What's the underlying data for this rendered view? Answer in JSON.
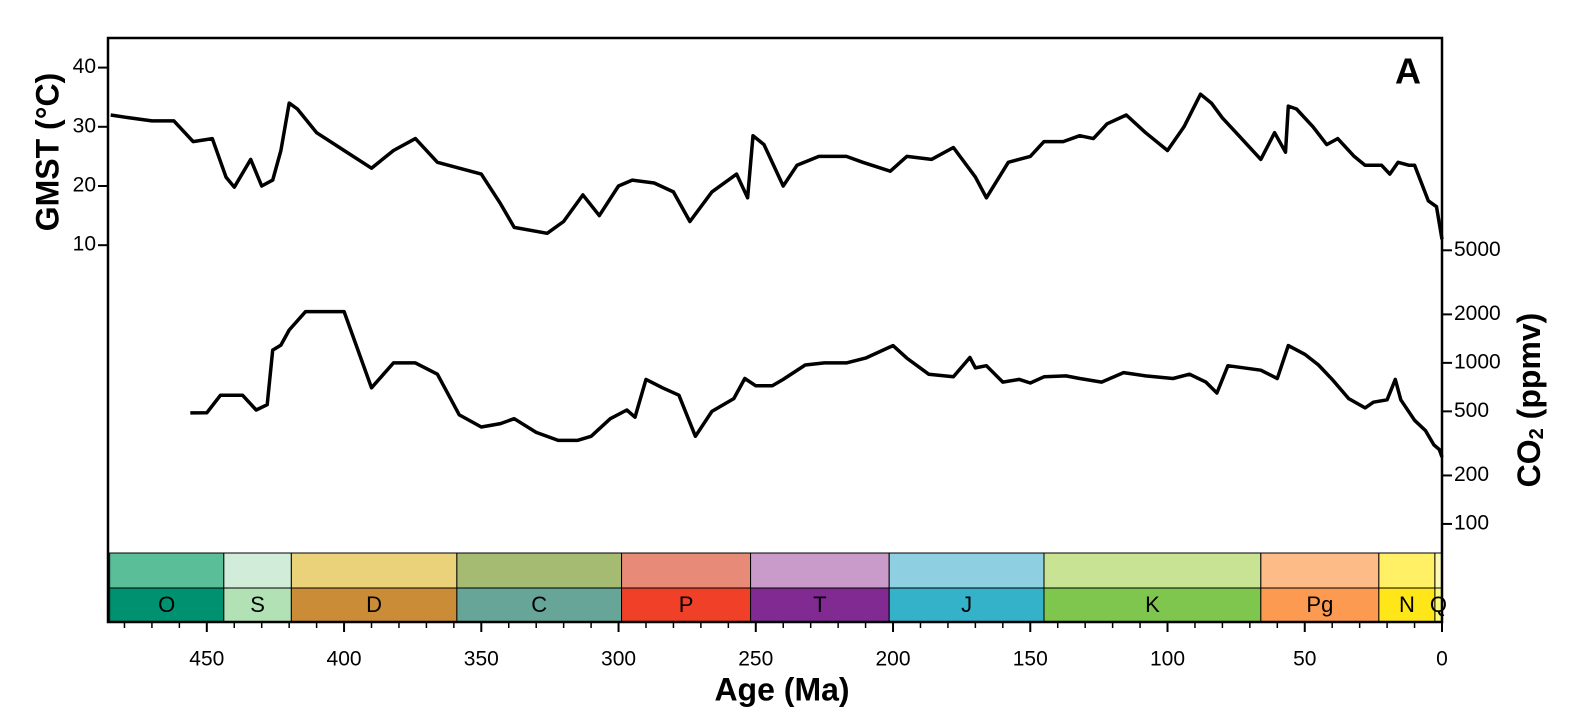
{
  "chart_data": {
    "type": "line",
    "panel_label": "A",
    "ylabel": "GMST (°C)",
    "y2label_main": "CO",
    "y2label_sub": "2",
    "y2label_unit": " (ppmv)",
    "xlabel": "Age (Ma)",
    "xlim": [
      486,
      0
    ],
    "xticks": [
      450,
      400,
      350,
      300,
      250,
      200,
      150,
      100,
      50,
      0
    ],
    "xminor": [
      480,
      470,
      460,
      440,
      430,
      420,
      410,
      390,
      380,
      370,
      360,
      340,
      330,
      320,
      310,
      290,
      280,
      270,
      260,
      240,
      230,
      220,
      210,
      190,
      180,
      170,
      160,
      140,
      130,
      120,
      110,
      90,
      80,
      70,
      60,
      40,
      30,
      20,
      10
    ],
    "ylim": [
      -42,
      45
    ],
    "yticks": [
      10,
      20,
      30,
      40
    ],
    "y2lim": [
      66,
      104000
    ],
    "y2log": true,
    "y2ticks": [
      100,
      200,
      500,
      1000,
      2000,
      5000
    ],
    "series": [
      {
        "axis": "y",
        "color": "#000000",
        "x": [
          485,
          478,
          470,
          462,
          455,
          448,
          443,
          440,
          434,
          430,
          426,
          423,
          420,
          417,
          410,
          400,
          390,
          382,
          374,
          366,
          358,
          350,
          343,
          338,
          326,
          320,
          313,
          307,
          300,
          295,
          287,
          280,
          274,
          266,
          257,
          253,
          251,
          247,
          240,
          235,
          227,
          217,
          211,
          201,
          195,
          186,
          178,
          170,
          166,
          158,
          150,
          145,
          138,
          132,
          127,
          122,
          115,
          108,
          100,
          94,
          88,
          84,
          80,
          74,
          66,
          61,
          57,
          56,
          53,
          47,
          42,
          38,
          32,
          28,
          22,
          19,
          16,
          12,
          10,
          5,
          2,
          0
        ],
        "values": [
          32,
          31.5,
          31,
          31,
          27.5,
          28,
          21.5,
          19.8,
          24.5,
          20,
          21,
          26,
          34,
          33,
          29,
          26,
          23,
          26,
          28,
          24,
          23,
          22,
          17,
          13,
          12,
          14,
          18.5,
          15,
          20,
          21,
          20.5,
          19,
          14,
          19,
          22,
          18,
          28.5,
          27,
          20,
          23.5,
          25,
          25,
          24,
          22.5,
          25,
          24.5,
          26.5,
          21.5,
          18,
          24,
          25,
          27.5,
          27.5,
          28.5,
          28,
          30.5,
          32,
          29,
          26,
          30,
          35.5,
          34,
          31.5,
          28.5,
          24.5,
          29,
          25.7,
          33.5,
          33,
          30,
          27,
          28,
          25,
          23.5,
          23.5,
          22,
          24,
          23.5,
          23.5,
          17.5,
          16.5,
          11
        ]
      },
      {
        "axis": "y2",
        "color": "#000000",
        "x": [
          456,
          450,
          445,
          437,
          432,
          428,
          426,
          423,
          420,
          414,
          400,
          390,
          382,
          374,
          366,
          358,
          350,
          343,
          338,
          330,
          322,
          315,
          310,
          303,
          297,
          294,
          290,
          284,
          278,
          272,
          266,
          258,
          254,
          250,
          244,
          240,
          232,
          225,
          217,
          210,
          200,
          195,
          187,
          178,
          172,
          170,
          166,
          160,
          154,
          150,
          145,
          137,
          132,
          124,
          116,
          108,
          98,
          92,
          86,
          82,
          78,
          66,
          60,
          56,
          50,
          45,
          40,
          34,
          28,
          25,
          20,
          17,
          15,
          10,
          6,
          3,
          1,
          0
        ],
        "values": [
          489,
          490,
          630,
          630,
          510,
          550,
          1200,
          1290,
          1600,
          2080,
          2080,
          700,
          1000,
          1000,
          850,
          475,
          400,
          420,
          450,
          370,
          330,
          330,
          350,
          450,
          510,
          460,
          790,
          700,
          630,
          350,
          500,
          600,
          800,
          720,
          720,
          790,
          970,
          1000,
          1000,
          1070,
          1280,
          1070,
          850,
          820,
          1080,
          930,
          960,
          760,
          790,
          750,
          820,
          830,
          800,
          760,
          870,
          830,
          800,
          850,
          760,
          650,
          960,
          900,
          800,
          1280,
          1130,
          970,
          790,
          600,
          525,
          570,
          590,
          790,
          590,
          440,
          380,
          310,
          290,
          260
        ]
      }
    ],
    "periods": [
      {
        "label": "O",
        "start": 485.4,
        "end": 443.8,
        "color": "#009270",
        "stage_color": "#5ABF99"
      },
      {
        "label": "S",
        "start": 443.8,
        "end": 419.2,
        "color": "#B3E1B6",
        "stage_color": "#D2ECDA"
      },
      {
        "label": "D",
        "start": 419.2,
        "end": 358.9,
        "color": "#CB8C37",
        "stage_color": "#EAD27A"
      },
      {
        "label": "C",
        "start": 358.9,
        "end": 298.9,
        "color": "#67A599",
        "stage_color": "#A6BB72"
      },
      {
        "label": "P",
        "start": 298.9,
        "end": 251.9,
        "color": "#F04028",
        "stage_color": "#E88A78"
      },
      {
        "label": "T",
        "start": 251.9,
        "end": 201.4,
        "color": "#812B92",
        "stage_color": "#C99BCA"
      },
      {
        "label": "J",
        "start": 201.4,
        "end": 145,
        "color": "#34B2C9",
        "stage_color": "#8ECFE2"
      },
      {
        "label": "K",
        "start": 145,
        "end": 66,
        "color": "#7FC64E",
        "stage_color": "#C7E393"
      },
      {
        "label": "Pg",
        "start": 66,
        "end": 23,
        "color": "#FD9A52",
        "stage_color": "#FDBB87"
      },
      {
        "label": "N",
        "start": 23,
        "end": 2.58,
        "color": "#FFE619",
        "stage_color": "#FFF066"
      },
      {
        "label": "Q",
        "start": 2.58,
        "end": 0,
        "color": "#F9F97F",
        "stage_color": "#FFF9B8"
      }
    ]
  }
}
